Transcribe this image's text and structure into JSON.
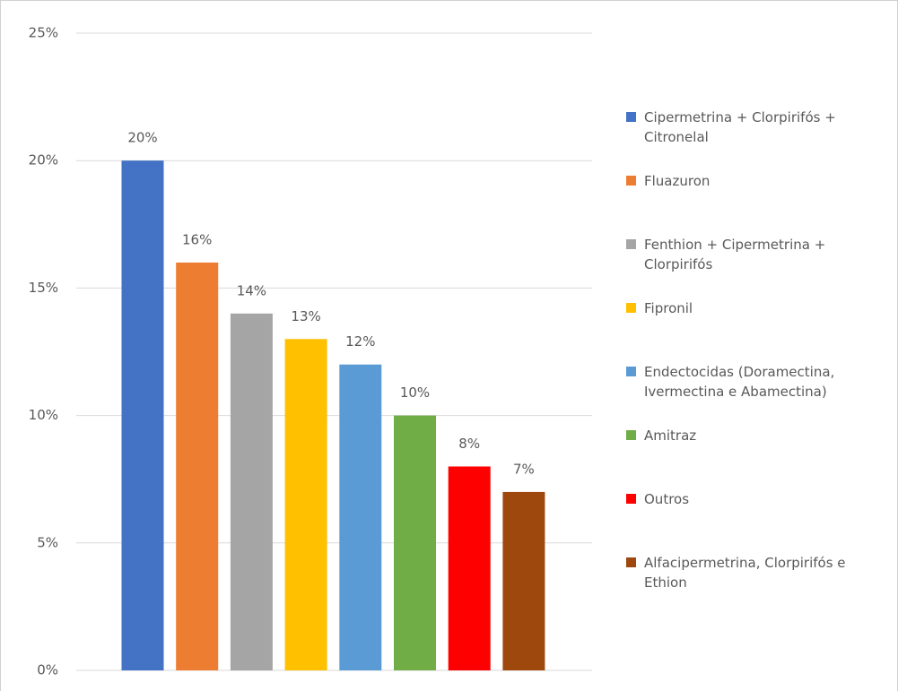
{
  "chart_data": {
    "type": "bar",
    "categories": [
      "Cipermetrina + Clorpirifós + Citronelal",
      "Fluazuron",
      "Fenthion + Cipermetrina + Clorpirifós",
      "Fipronil",
      "Endectocidas (Doramectina, Ivermectina e Abamectina)",
      "Amitraz",
      "Outros",
      "Alfacipermetrina, Clorpirifós e Ethion"
    ],
    "values": [
      20,
      16,
      14,
      13,
      12,
      10,
      8,
      7
    ],
    "value_labels": [
      "20%",
      "16%",
      "14%",
      "13%",
      "12%",
      "10%",
      "8%",
      "7%"
    ],
    "colors": [
      "#4472c4",
      "#ed7d31",
      "#a5a5a5",
      "#ffc000",
      "#5b9bd5",
      "#70ad47",
      "#ff0000",
      "#9e480e"
    ],
    "ylim": [
      0,
      25
    ],
    "yticks": [
      {
        "value": 0,
        "label": "0%"
      },
      {
        "value": 5,
        "label": "5%"
      },
      {
        "value": 10,
        "label": "10%"
      },
      {
        "value": 15,
        "label": "15%"
      },
      {
        "value": 20,
        "label": "20%"
      },
      {
        "value": 25,
        "label": "25%"
      }
    ],
    "grid": true,
    "legend": "right"
  }
}
